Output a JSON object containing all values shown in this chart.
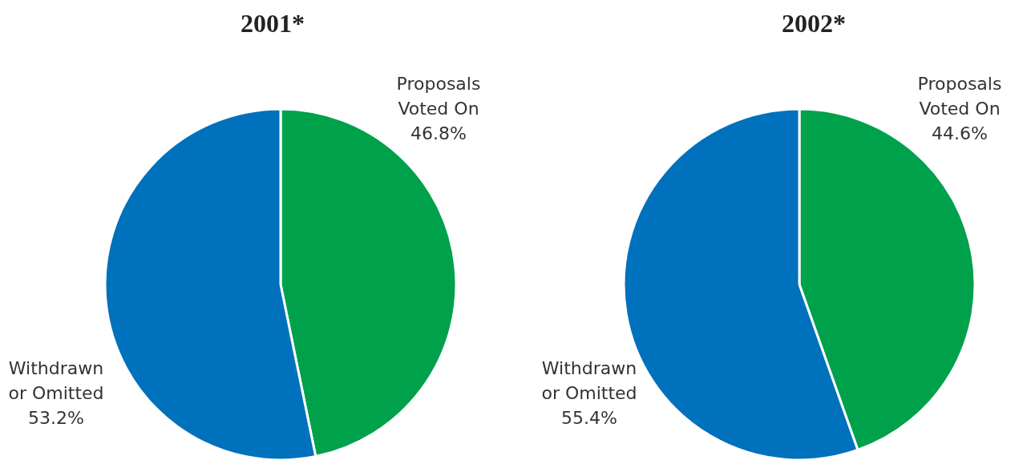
{
  "chart_data": [
    {
      "type": "pie",
      "title": "2001*",
      "categories": [
        "Proposals Voted On",
        "Withdrawn or Omitted"
      ],
      "values": [
        46.8,
        53.2
      ],
      "colors": [
        "#00a14b",
        "#0071bc"
      ],
      "value_labels": [
        "46.8%",
        "53.2%"
      ]
    },
    {
      "type": "pie",
      "title": "2002*",
      "categories": [
        "Proposals Voted On",
        "Withdrawn or Omitted"
      ],
      "values": [
        44.6,
        55.4
      ],
      "colors": [
        "#00a14b",
        "#0071bc"
      ],
      "value_labels": [
        "44.6%",
        "55.4%"
      ]
    }
  ]
}
